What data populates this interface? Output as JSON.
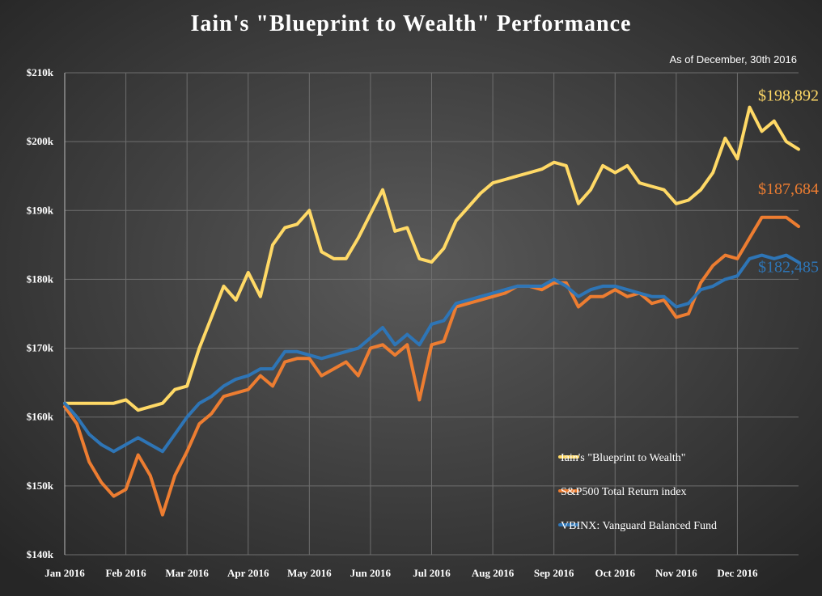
{
  "chart_data": {
    "type": "line",
    "title": "Iain's \"Blueprint to Wealth\" Performance",
    "subtitle": "As of December, 30th 2016",
    "categories": [
      "Jan 2016",
      null,
      null,
      null,
      null,
      "Feb 2016",
      null,
      null,
      null,
      null,
      "Mar 2016",
      null,
      null,
      null,
      null,
      "Apr 2016",
      null,
      null,
      null,
      null,
      "May 2016",
      null,
      null,
      null,
      null,
      "Jun 2016",
      null,
      null,
      null,
      null,
      "Jul 2016",
      null,
      null,
      null,
      null,
      "Aug 2016",
      null,
      null,
      null,
      null,
      "Sep 2016",
      null,
      null,
      null,
      null,
      "Oct 2016",
      null,
      null,
      null,
      null,
      "Nov 2016",
      null,
      null,
      null,
      null,
      "Dec 2016",
      null,
      null,
      null,
      null,
      null
    ],
    "series": [
      {
        "name": "Iain's \"Blueprint to Wealth\"",
        "color": "#ffd966",
        "end_label": "$198,892",
        "values": [
          162000,
          162000,
          162000,
          162000,
          162000,
          162500,
          161000,
          161500,
          162000,
          164000,
          164500,
          170000,
          174500,
          179000,
          177000,
          181000,
          177500,
          185000,
          187500,
          188000,
          190000,
          184000,
          183000,
          183000,
          186000,
          189500,
          193000,
          187000,
          187500,
          183000,
          182500,
          184500,
          188500,
          190500,
          192500,
          194000,
          194500,
          195000,
          195500,
          196000,
          197000,
          196500,
          191000,
          193000,
          196500,
          195500,
          196500,
          194000,
          193500,
          193000,
          191000,
          191500,
          193000,
          195500,
          200500,
          197500,
          205000,
          201500,
          203000,
          200000,
          198892
        ]
      },
      {
        "name": "S&P500 Total Return index",
        "color": "#ed7d31",
        "end_label": "$187,684",
        "values": [
          161500,
          159000,
          153500,
          150500,
          148500,
          149500,
          154500,
          151500,
          145800,
          151500,
          155000,
          159000,
          160500,
          163000,
          163500,
          164000,
          166000,
          164500,
          168000,
          168500,
          168500,
          166000,
          167000,
          168000,
          166000,
          170000,
          170500,
          169000,
          170500,
          162500,
          170500,
          171000,
          176000,
          176500,
          177000,
          177500,
          178000,
          179000,
          179000,
          178500,
          179500,
          179500,
          176000,
          177500,
          177500,
          178500,
          177500,
          178000,
          176500,
          177000,
          174500,
          175000,
          179500,
          182000,
          183500,
          183000,
          186000,
          189000,
          189000,
          189000,
          187684
        ]
      },
      {
        "name": "VBINX: Vanguard Balanced Fund",
        "color": "#2e75b6",
        "end_label": "$182,485",
        "values": [
          162000,
          160000,
          157500,
          156000,
          155000,
          156000,
          157000,
          156000,
          155000,
          157500,
          160000,
          162000,
          163000,
          164500,
          165500,
          166000,
          167000,
          167000,
          169500,
          169500,
          169000,
          168500,
          169000,
          169500,
          170000,
          171500,
          173000,
          170500,
          172000,
          170500,
          173500,
          174000,
          176500,
          177000,
          177500,
          178000,
          178500,
          179000,
          179000,
          179000,
          180000,
          179000,
          177500,
          178500,
          179000,
          179000,
          178500,
          178000,
          177500,
          177500,
          176000,
          176500,
          178500,
          179000,
          180000,
          180500,
          183000,
          183500,
          183000,
          183500,
          182485
        ]
      }
    ],
    "ylim": [
      140000,
      210000
    ],
    "yticks": [
      {
        "value": 140000,
        "label": "$140k"
      },
      {
        "value": 150000,
        "label": "$150k"
      },
      {
        "value": 160000,
        "label": "$160k"
      },
      {
        "value": 170000,
        "label": "$170k"
      },
      {
        "value": 180000,
        "label": "$180k"
      },
      {
        "value": 190000,
        "label": "$190k"
      },
      {
        "value": 200000,
        "label": "$200k"
      },
      {
        "value": 210000,
        "label": "$210k"
      }
    ],
    "grid": true,
    "legend": "lower right"
  }
}
